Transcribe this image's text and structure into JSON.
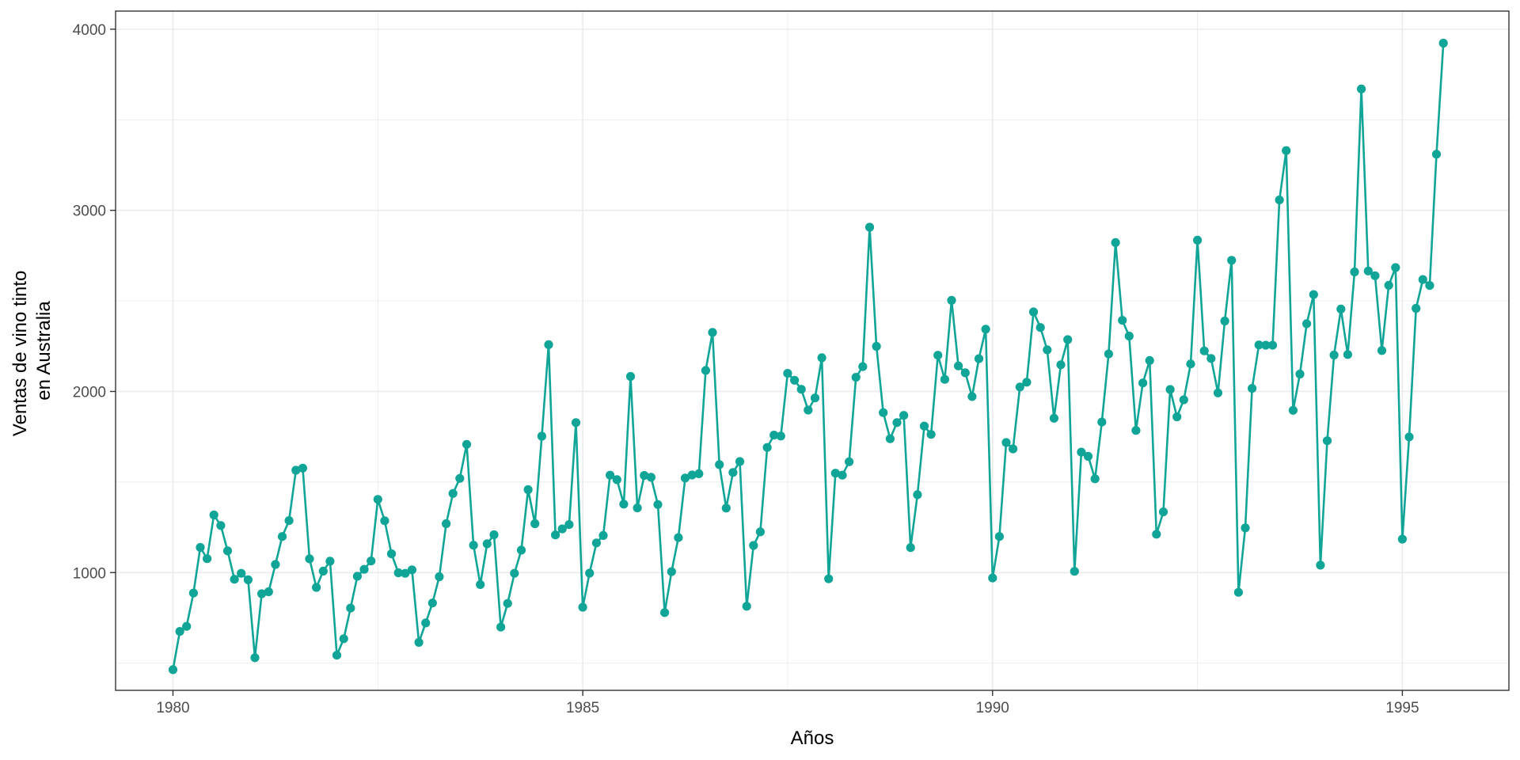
{
  "chart_data": {
    "type": "line",
    "title": "",
    "xlabel": "Años",
    "ylabel_lines": [
      "Ventas de vino tinto",
      "en Australia"
    ],
    "xlim": [
      1979.3,
      1996.3
    ],
    "ylim": [
      350,
      4100
    ],
    "x_ticks": [
      1980,
      1985,
      1990,
      1995
    ],
    "x_tick_labels": [
      "1980",
      "1985",
      "1990",
      "1995"
    ],
    "y_ticks": [
      1000,
      2000,
      3000,
      4000
    ],
    "y_tick_labels": [
      "1000",
      "2000",
      "3000",
      "4000"
    ],
    "grid": true,
    "legend": "none",
    "colors": {
      "series": "#11a597",
      "grid": "#ebebeb",
      "border": "#333333"
    },
    "series": [
      {
        "start_year": 1980,
        "frequency": "monthly",
        "values": [
          464,
          675,
          703,
          887,
          1139,
          1077,
          1318,
          1260,
          1120,
          963,
          996,
          960,
          530,
          883,
          894,
          1045,
          1199,
          1287,
          1565,
          1577,
          1076,
          918,
          1008,
          1063,
          544,
          635,
          804,
          980,
          1018,
          1064,
          1404,
          1286,
          1104,
          999,
          996,
          1015,
          615,
          722,
          832,
          977,
          1270,
          1437,
          1520,
          1708,
          1151,
          934,
          1159,
          1209,
          699,
          830,
          996,
          1124,
          1458,
          1270,
          1753,
          2258,
          1208,
          1241,
          1265,
          1828,
          809,
          997,
          1164,
          1205,
          1538,
          1513,
          1378,
          2083,
          1357,
          1536,
          1526,
          1376,
          779,
          1005,
          1193,
          1522,
          1539,
          1546,
          2116,
          2326,
          1596,
          1356,
          1553,
          1613,
          814,
          1150,
          1225,
          1691,
          1759,
          1754,
          2100,
          2062,
          2012,
          1897,
          1964,
          2186,
          966,
          1549,
          1538,
          1612,
          2078,
          2137,
          2907,
          2249,
          1883,
          1739,
          1828,
          1868,
          1138,
          1430,
          1809,
          1763,
          2200,
          2067,
          2503,
          2141,
          2103,
          1972,
          2181,
          2344,
          970,
          1199,
          1718,
          1683,
          2025,
          2051,
          2439,
          2353,
          2230,
          1852,
          2147,
          2286,
          1007,
          1665,
          1642,
          1518,
          1831,
          2207,
          2822,
          2393,
          2306,
          1785,
          2047,
          2171,
          1212,
          1335,
          2011,
          1860,
          1954,
          2152,
          2835,
          2224,
          2182,
          1992,
          2389,
          2724,
          891,
          1247,
          2017,
          2257,
          2255,
          2255,
          3057,
          3330,
          1896,
          2096,
          2374,
          2535,
          1041,
          1728,
          2201,
          2455,
          2204,
          2660,
          3670,
          2665,
          2639,
          2226,
          2586,
          2684,
          1185,
          1749,
          2459,
          2618,
          2585,
          3310,
          3923
        ]
      }
    ]
  }
}
